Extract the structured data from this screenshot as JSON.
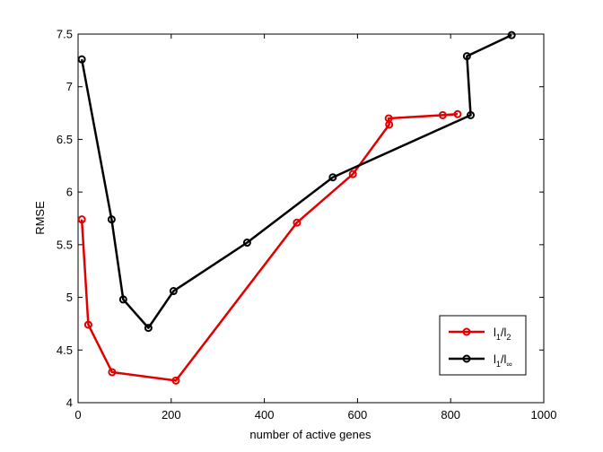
{
  "chart_data": {
    "type": "line",
    "title": "",
    "xlabel": "number of active genes",
    "ylabel": "RMSE",
    "xlim": [
      0,
      1000
    ],
    "ylim": [
      4,
      7.5
    ],
    "xticks": [
      0,
      200,
      400,
      600,
      800,
      1000
    ],
    "yticks": [
      4,
      4.5,
      5,
      5.5,
      6,
      6.5,
      7,
      7.5
    ],
    "xtick_labels": [
      "0",
      "200",
      "400",
      "600",
      "800",
      "1000"
    ],
    "ytick_labels": [
      "4",
      "4.5",
      "5",
      "5.5",
      "6",
      "6.5",
      "7",
      "7.5"
    ],
    "grid": false,
    "legend_position": "bottom-right",
    "series": [
      {
        "legend_base": "l",
        "legend_sub1": "1",
        "legend_sep": "/l",
        "legend_sub2": "2",
        "color": "#e00000",
        "marker": "circle",
        "x": [
          8,
          22,
          73,
          210,
          470,
          590,
          668,
          667,
          783,
          815
        ],
        "y": [
          5.74,
          4.74,
          4.29,
          4.21,
          5.71,
          6.17,
          6.64,
          6.7,
          6.73,
          6.74
        ]
      },
      {
        "legend_base": "l",
        "legend_sub1": "1",
        "legend_sep": "/l",
        "legend_sub2": "∞",
        "color": "#000000",
        "marker": "circle",
        "x": [
          8,
          72,
          97,
          151,
          205,
          363,
          547,
          843,
          835,
          931
        ],
        "y": [
          7.26,
          5.74,
          4.98,
          4.71,
          5.06,
          5.52,
          6.14,
          6.73,
          7.29,
          7.49
        ]
      }
    ]
  }
}
